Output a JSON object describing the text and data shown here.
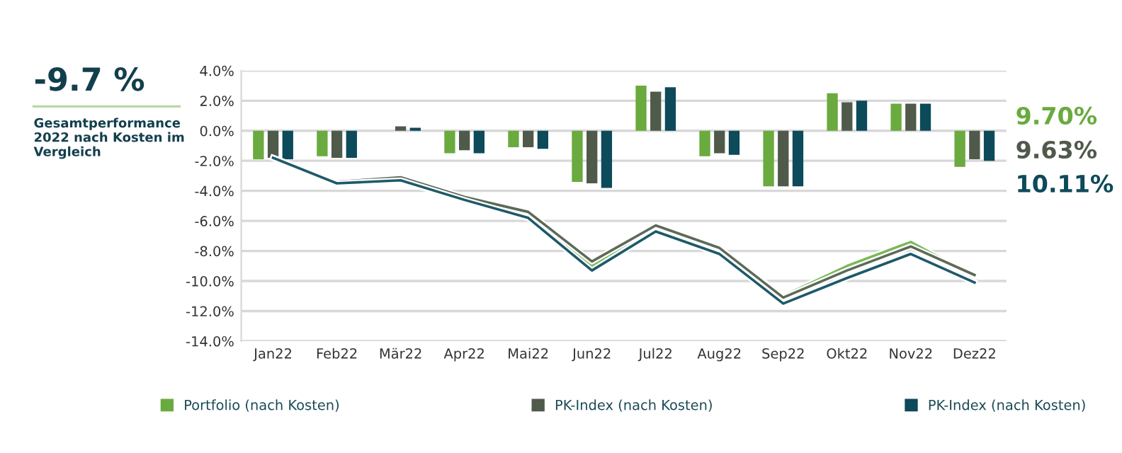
{
  "chart_data": {
    "type": "bar",
    "title": "-9.7 %",
    "subtitle": "Gesamtperformance 2022 nach Kosten im Vergleich",
    "categories": [
      "Jan22",
      "Feb22",
      "Mär22",
      "Apr22",
      "Mai22",
      "Jun22",
      "Jul22",
      "Aug22",
      "Sep22",
      "Okt22",
      "Nov22",
      "Dez22"
    ],
    "series": [
      {
        "name": "Portfolio (nach Kosten)",
        "color": "#6aaa3f",
        "values": [
          -1.9,
          -1.7,
          0.0,
          -1.5,
          -1.1,
          -3.4,
          3.0,
          -1.7,
          -3.7,
          2.5,
          1.8,
          -2.4
        ]
      },
      {
        "name": "PK-Index (nach Kosten)",
        "color": "#4f5a4a",
        "values": [
          -1.8,
          -1.8,
          0.3,
          -1.3,
          -1.1,
          -3.5,
          2.6,
          -1.5,
          -3.7,
          1.9,
          1.8,
          -1.9
        ]
      },
      {
        "name": "PK-Index (nach Kosten)",
        "color": "#0d4a5a",
        "values": [
          -1.9,
          -1.8,
          0.2,
          -1.5,
          -1.2,
          -3.8,
          2.9,
          -1.6,
          -3.7,
          2.0,
          1.8,
          -2.0
        ]
      },
      {
        "type": "line",
        "color": "#7cb85a",
        "values": [
          -1.8,
          -3.5,
          -3.3,
          -4.7,
          -5.8,
          -9.0,
          -6.3,
          -7.9,
          -11.0,
          -9.0,
          -7.4,
          -9.7
        ]
      },
      {
        "type": "line",
        "color": "#5e6a58",
        "values": [
          -1.8,
          -3.4,
          -3.1,
          -4.4,
          -5.4,
          -8.7,
          -6.3,
          -7.8,
          -11.1,
          -9.3,
          -7.7,
          -9.6
        ]
      },
      {
        "type": "line",
        "color": "#1d5a6a",
        "values": [
          -1.8,
          -3.5,
          -3.3,
          -4.6,
          -5.8,
          -9.3,
          -6.7,
          -8.2,
          -11.5,
          -9.8,
          -8.2,
          -10.1
        ]
      }
    ],
    "annotations": [
      "9.70%",
      "9.63%",
      "10.11%"
    ],
    "ylim": [
      -14,
      4
    ],
    "yticks": [
      {
        "value": -14,
        "label": "-14.0%"
      },
      {
        "value": -12,
        "label": "-12.0%"
      },
      {
        "value": -10,
        "label": "-10.0%"
      },
      {
        "value": -8,
        "label": "-8.0%"
      },
      {
        "value": -6,
        "label": "-6.0%"
      },
      {
        "value": -4,
        "label": "-4.0%"
      },
      {
        "value": -2,
        "label": "-2.0%"
      },
      {
        "value": 0,
        "label": "0.0%"
      },
      {
        "value": 2,
        "label": "2.0%"
      },
      {
        "value": 4,
        "label": "4.0%"
      }
    ],
    "grid": "y",
    "legend": "bottom",
    "marker": "none",
    "line_style": "solid"
  }
}
